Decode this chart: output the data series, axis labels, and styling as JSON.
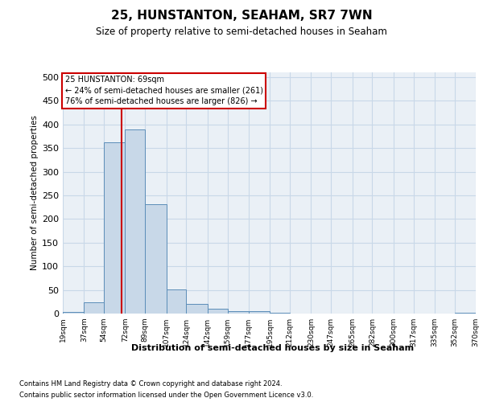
{
  "title": "25, HUNSTANTON, SEAHAM, SR7 7WN",
  "subtitle": "Size of property relative to semi-detached houses in Seaham",
  "xlabel": "Distribution of semi-detached houses by size in Seaham",
  "ylabel": "Number of semi-detached properties",
  "footnote1": "Contains HM Land Registry data © Crown copyright and database right 2024.",
  "footnote2": "Contains public sector information licensed under the Open Government Licence v3.0.",
  "annotation_title": "25 HUNSTANTON: 69sqm",
  "annotation_line1": "← 24% of semi-detached houses are smaller (261)",
  "annotation_line2": "76% of semi-detached houses are larger (826) →",
  "property_size": 69,
  "bar_color": "#c8d8e8",
  "bar_edge_color": "#5b8db8",
  "redline_color": "#cc0000",
  "annotation_box_color": "#cc0000",
  "background_color": "#ffffff",
  "grid_color": "#c8d8e8",
  "bin_edges": [
    19,
    37,
    54,
    72,
    89,
    107,
    124,
    142,
    159,
    177,
    195,
    212,
    230,
    247,
    265,
    282,
    300,
    317,
    335,
    352,
    370
  ],
  "bar_heights": [
    4,
    24,
    362,
    390,
    232,
    51,
    20,
    10,
    5,
    5,
    1,
    0,
    0,
    0,
    0,
    0,
    0,
    0,
    0,
    2
  ],
  "ylim": [
    0,
    510
  ],
  "yticks": [
    0,
    50,
    100,
    150,
    200,
    250,
    300,
    350,
    400,
    450,
    500
  ]
}
